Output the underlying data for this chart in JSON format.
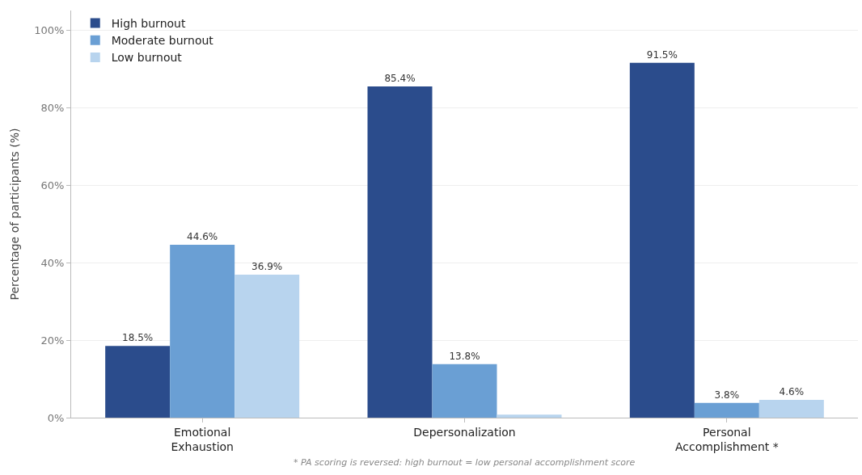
{
  "chart_data": {
    "type": "bar",
    "ylabel": "Percentage of participants (%)",
    "categories": [
      "Emotional Exhaustion",
      "Depersonalization",
      "Personal Accomplishment *"
    ],
    "series": [
      {
        "name": "High burnout",
        "color": "#2b4c8c",
        "values": [
          18.5,
          85.4,
          91.5
        ],
        "value_labels": [
          "18.5%",
          "85.4%",
          "91.5%"
        ]
      },
      {
        "name": "Moderate burnout",
        "color": "#6a9fd4",
        "values": [
          44.6,
          13.8,
          3.8
        ],
        "value_labels": [
          "44.6%",
          "13.8%",
          "3.8%"
        ]
      },
      {
        "name": "Low burnout",
        "color": "#b8d4ee",
        "values": [
          36.9,
          0.8,
          4.6
        ],
        "value_labels": [
          "36.9%",
          null,
          "4.6%"
        ]
      }
    ],
    "ylim": [
      0,
      105
    ],
    "yticks": [
      {
        "value": 0,
        "label": "0%"
      },
      {
        "value": 20,
        "label": "20%"
      },
      {
        "value": 40,
        "label": "40%"
      },
      {
        "value": 60,
        "label": "60%"
      },
      {
        "value": 80,
        "label": "80%"
      },
      {
        "value": 100,
        "label": "100%"
      }
    ],
    "grid": "y",
    "legend": "top left",
    "annotations": [
      "* PA scoring is reversed: high burnout = low personal accomplishment score"
    ]
  }
}
